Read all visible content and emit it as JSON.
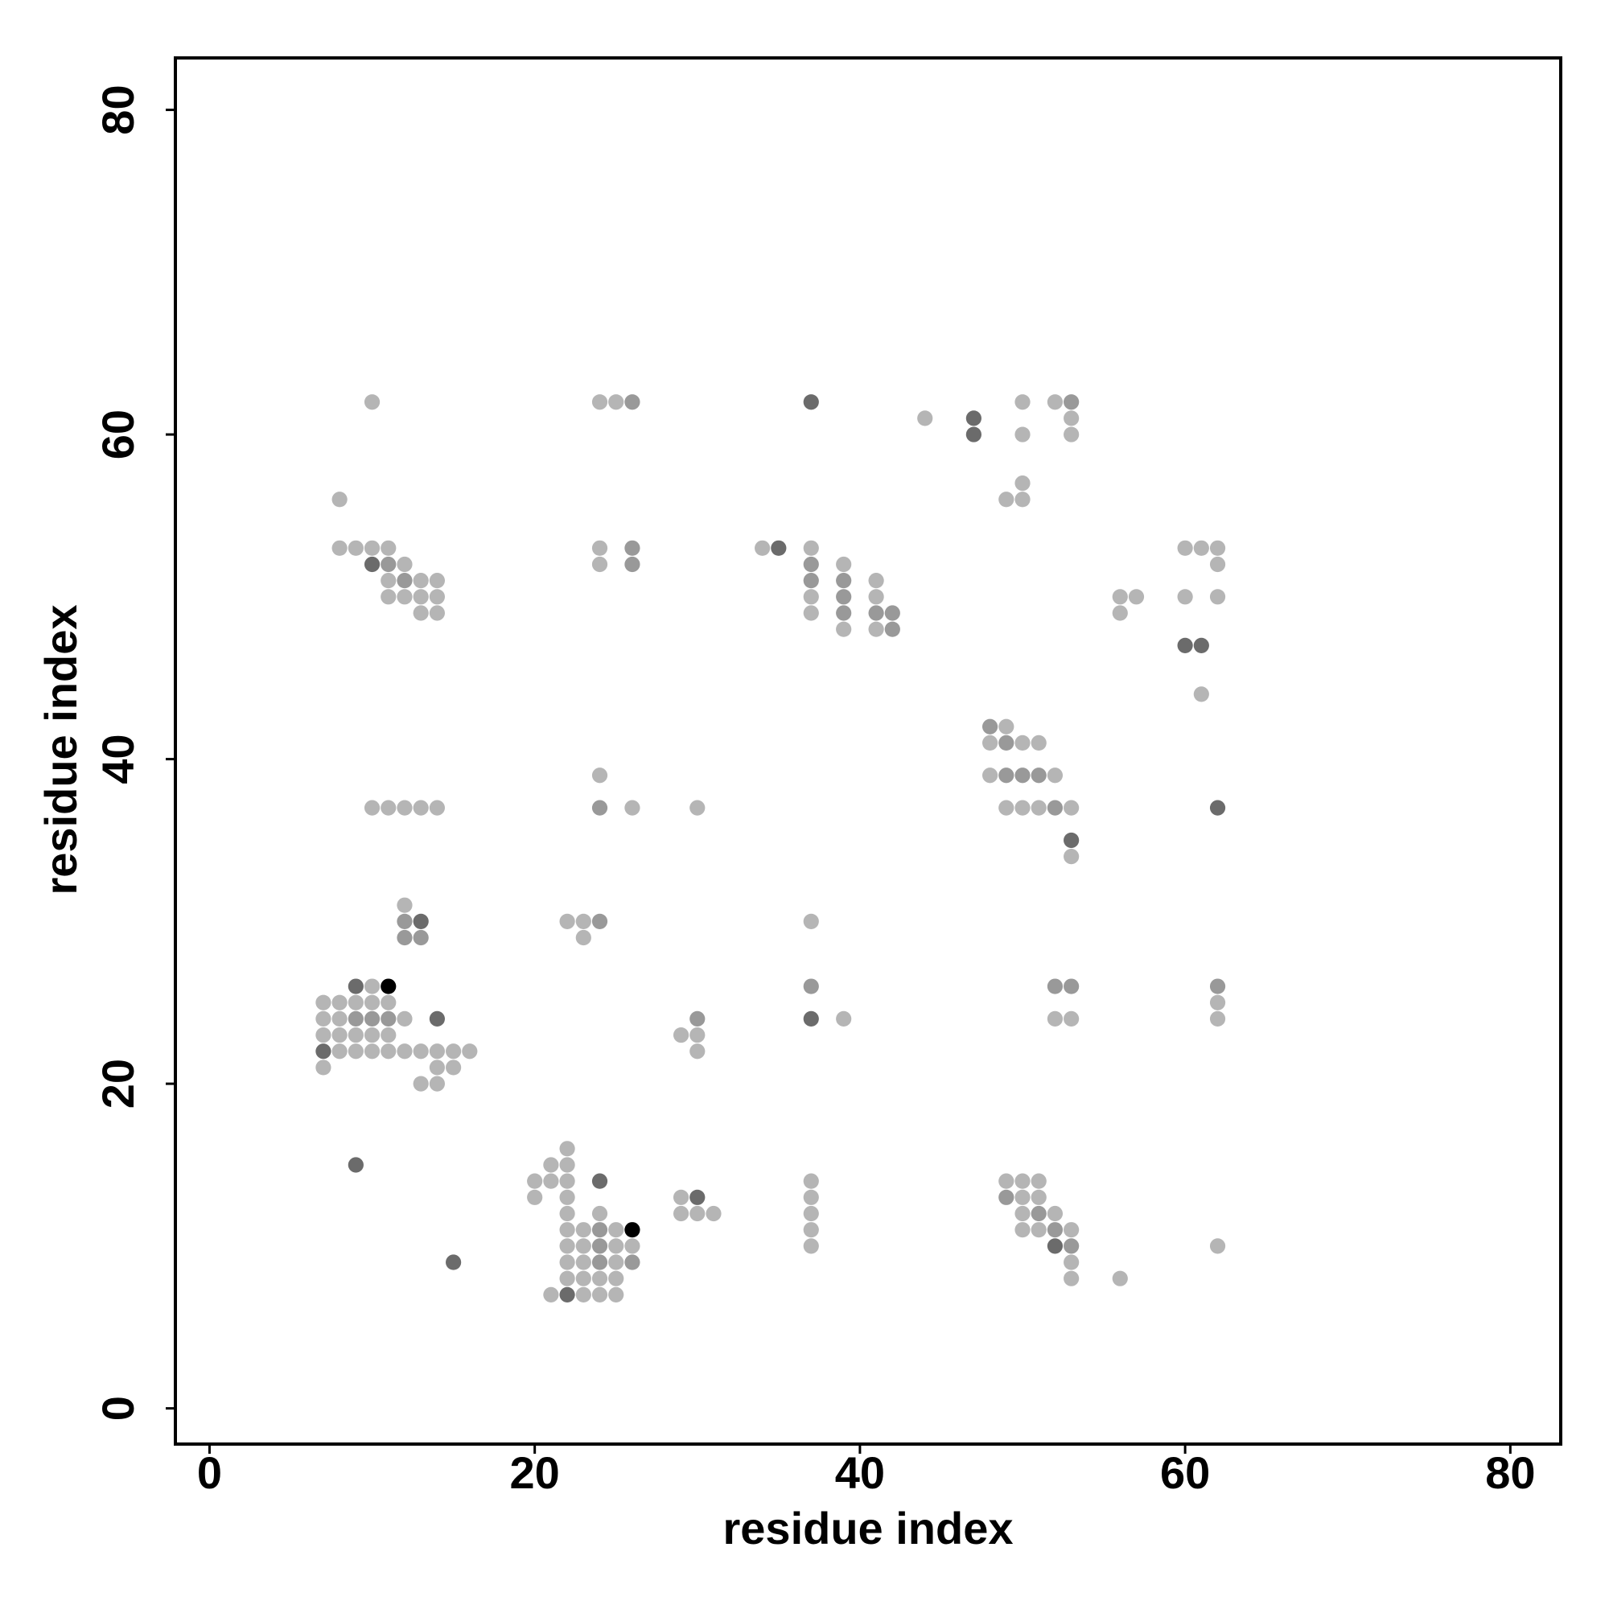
{
  "chart_data": {
    "type": "scatter",
    "xlabel": "residue index",
    "ylabel": "residue index",
    "xlim": [
      -2.1,
      83.1
    ],
    "ylim": [
      -2.2,
      83.2
    ],
    "xticks": [
      0,
      20,
      40,
      60,
      80
    ],
    "yticks": [
      0,
      20,
      40,
      60,
      80
    ],
    "series": [
      {
        "color": "#b5b5b5",
        "x": [
          10,
          24,
          25,
          50,
          52,
          44,
          53,
          50,
          53,
          50,
          8,
          49,
          50,
          8,
          9,
          10,
          11,
          24,
          34,
          37,
          60,
          61,
          62,
          12,
          24,
          39,
          62,
          11,
          13,
          14,
          41,
          11,
          12,
          13,
          14,
          37,
          41,
          56,
          57,
          60,
          62,
          13,
          14,
          37,
          56,
          39,
          41,
          61,
          49,
          48,
          50,
          51,
          24,
          48,
          52,
          10,
          11,
          12,
          13,
          14,
          26,
          30,
          49,
          50,
          51,
          53,
          53,
          12,
          22,
          23,
          37,
          23,
          10,
          7,
          8,
          9,
          10,
          11,
          62,
          7,
          8,
          12,
          39,
          52,
          53,
          62,
          7,
          8,
          9,
          10,
          11,
          29,
          30,
          8,
          9,
          10,
          11,
          12,
          13,
          14,
          15,
          16,
          30,
          7,
          14,
          15,
          13,
          14,
          22,
          21,
          22,
          20,
          21,
          22,
          37,
          49,
          50,
          51,
          20,
          22,
          29,
          37,
          50,
          51,
          22,
          24,
          29,
          30,
          31,
          37,
          50,
          52,
          22,
          23,
          25,
          37,
          50,
          51,
          53,
          22,
          23,
          25,
          26,
          37,
          62,
          22,
          23,
          25,
          53,
          22,
          23,
          24,
          25,
          53,
          56,
          21,
          23,
          24,
          25
        ],
        "y": [
          62,
          62,
          62,
          62,
          62,
          61,
          61,
          60,
          60,
          57,
          56,
          56,
          56,
          53,
          53,
          53,
          53,
          53,
          53,
          53,
          53,
          53,
          53,
          52,
          52,
          52,
          52,
          51,
          51,
          51,
          51,
          50,
          50,
          50,
          50,
          50,
          50,
          50,
          50,
          50,
          50,
          49,
          49,
          49,
          49,
          48,
          48,
          44,
          42,
          41,
          41,
          41,
          39,
          39,
          39,
          37,
          37,
          37,
          37,
          37,
          37,
          37,
          37,
          37,
          37,
          37,
          34,
          31,
          30,
          30,
          30,
          29,
          26,
          25,
          25,
          25,
          25,
          25,
          25,
          24,
          24,
          24,
          24,
          24,
          24,
          24,
          23,
          23,
          23,
          23,
          23,
          23,
          23,
          22,
          22,
          22,
          22,
          22,
          22,
          22,
          22,
          22,
          22,
          21,
          21,
          21,
          20,
          20,
          16,
          15,
          15,
          14,
          14,
          14,
          14,
          14,
          14,
          14,
          13,
          13,
          13,
          13,
          13,
          13,
          12,
          12,
          12,
          12,
          12,
          12,
          12,
          12,
          11,
          11,
          11,
          11,
          11,
          11,
          11,
          10,
          10,
          10,
          10,
          10,
          10,
          9,
          9,
          9,
          9,
          8,
          8,
          8,
          8,
          8,
          8,
          7,
          7,
          7,
          7
        ]
      },
      {
        "color": "#999999",
        "x": [
          26,
          53,
          26,
          11,
          26,
          37,
          12,
          37,
          39,
          39,
          39,
          41,
          42,
          42,
          48,
          49,
          49,
          50,
          51,
          24,
          52,
          12,
          24,
          12,
          13,
          37,
          52,
          53,
          62,
          9,
          10,
          11,
          30,
          49,
          51,
          24,
          52,
          24,
          53,
          24,
          26
        ],
        "y": [
          62,
          62,
          53,
          52,
          52,
          52,
          51,
          51,
          51,
          50,
          49,
          49,
          49,
          48,
          42,
          41,
          39,
          39,
          39,
          37,
          37,
          30,
          30,
          29,
          29,
          26,
          26,
          26,
          26,
          24,
          24,
          24,
          24,
          13,
          12,
          11,
          11,
          10,
          10,
          9,
          9
        ]
      },
      {
        "color": "#6b6b6b",
        "x": [
          37,
          47,
          47,
          35,
          10,
          60,
          61,
          62,
          53,
          13,
          9,
          14,
          37,
          7,
          9,
          24,
          30,
          52,
          15,
          22
        ],
        "y": [
          62,
          61,
          60,
          53,
          52,
          47,
          47,
          37,
          35,
          30,
          26,
          24,
          24,
          22,
          15,
          14,
          13,
          10,
          9,
          7
        ]
      },
      {
        "color": "#000000",
        "x": [
          11,
          26
        ],
        "y": [
          26,
          11
        ]
      }
    ]
  }
}
